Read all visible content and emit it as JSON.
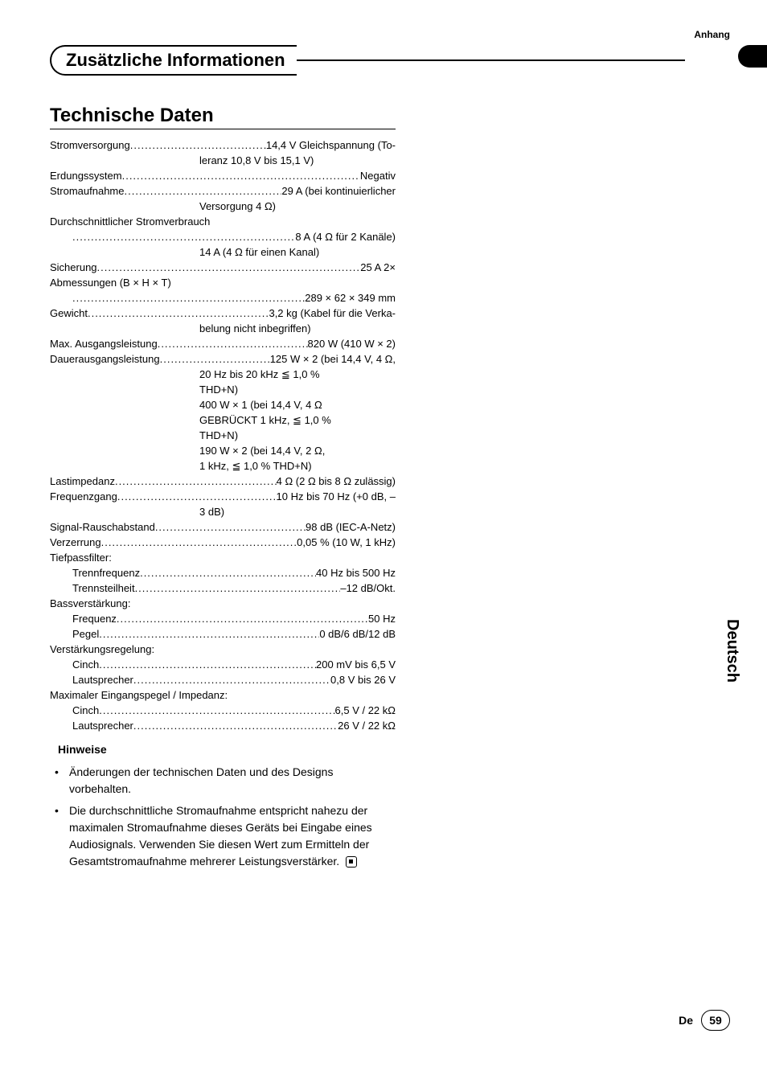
{
  "header": {
    "top_label": "Anhang",
    "pill_title": "Zusätzliche Informationen"
  },
  "side": {
    "language": "Deutsch"
  },
  "section_title": "Technische Daten",
  "specs": [
    {
      "t": "spec",
      "label": "Stromversorgung",
      "value": "14,4 V Gleichspannung (To-"
    },
    {
      "t": "cont",
      "value": "leranz 10,8 V bis 15,1 V)"
    },
    {
      "t": "spec",
      "label": "Erdungssystem",
      "value": "Negativ"
    },
    {
      "t": "spec",
      "label": "Stromaufnahme",
      "value": "29 A (bei kontinuierlicher"
    },
    {
      "t": "cont",
      "value": "Versorgung 4 Ω)"
    },
    {
      "t": "plain",
      "value": "Durchschnittlicher Stromverbrauch"
    },
    {
      "t": "spec",
      "indent": true,
      "label": "",
      "value": "8 A (4 Ω für 2 Kanäle)"
    },
    {
      "t": "cont",
      "value": "14 A (4 Ω für einen Kanal)"
    },
    {
      "t": "spec",
      "label": "Sicherung",
      "value": "25 A 2×"
    },
    {
      "t": "plain",
      "value": "Abmessungen (B × H × T)"
    },
    {
      "t": "spec",
      "indent": true,
      "label": "",
      "value": "289 × 62 × 349 mm"
    },
    {
      "t": "spec",
      "label": "Gewicht",
      "value": "3,2 kg (Kabel für die Verka-"
    },
    {
      "t": "cont",
      "value": "belung nicht inbegriffen)"
    },
    {
      "t": "spec",
      "label": "Max. Ausgangsleistung",
      "value": "820 W (410 W × 2)"
    },
    {
      "t": "spec",
      "label": "Dauerausgangsleistung",
      "value": "125 W × 2 (bei 14,4 V, 4 Ω,"
    },
    {
      "t": "cont",
      "value": "20 Hz bis 20 kHz ≦ 1,0 %"
    },
    {
      "t": "cont",
      "value": "THD+N)"
    },
    {
      "t": "cont",
      "value": "400 W × 1 (bei 14,4 V, 4 Ω"
    },
    {
      "t": "cont",
      "value": "GEBRÜCKT 1 kHz, ≦ 1,0 %"
    },
    {
      "t": "cont",
      "value": "THD+N)"
    },
    {
      "t": "cont",
      "value": "190 W × 2 (bei 14,4 V, 2 Ω,"
    },
    {
      "t": "cont",
      "value": "1 kHz, ≦ 1,0 % THD+N)"
    },
    {
      "t": "spec",
      "label": "Lastimpedanz",
      "value": "4 Ω (2 Ω bis 8 Ω zulässig)"
    },
    {
      "t": "spec",
      "label": "Frequenzgang",
      "value": "10 Hz bis 70 Hz (+0 dB, –"
    },
    {
      "t": "cont",
      "value": "3 dB)"
    },
    {
      "t": "spec",
      "label": "Signal-Rauschabstand",
      "value": "98 dB (IEC-A-Netz)"
    },
    {
      "t": "spec",
      "label": "Verzerrung",
      "value": "0,05 % (10 W, 1 kHz)"
    },
    {
      "t": "plain",
      "value": "Tiefpassfilter:"
    },
    {
      "t": "spec",
      "indent": true,
      "label": "Trennfrequenz",
      "value": "40 Hz bis 500 Hz"
    },
    {
      "t": "spec",
      "indent": true,
      "label": "Trennsteilheit",
      "value": "–12 dB/Okt."
    },
    {
      "t": "plain",
      "value": "Bassverstärkung:"
    },
    {
      "t": "spec",
      "indent": true,
      "label": "Frequenz",
      "value": "50 Hz"
    },
    {
      "t": "spec",
      "indent": true,
      "label": "Pegel",
      "value": "0 dB/6 dB/12 dB"
    },
    {
      "t": "plain",
      "value": "Verstärkungsregelung:"
    },
    {
      "t": "spec",
      "indent": true,
      "label": "Cinch",
      "value": "200 mV bis 6,5 V"
    },
    {
      "t": "spec",
      "indent": true,
      "label": "Lautsprecher",
      "value": "0,8 V bis 26 V"
    },
    {
      "t": "plain",
      "value": "Maximaler Eingangspegel / Impedanz:"
    },
    {
      "t": "spec",
      "indent": true,
      "label": "Cinch",
      "value": "6,5 V / 22 kΩ"
    },
    {
      "t": "spec",
      "indent": true,
      "label": "Lautsprecher",
      "value": "26 V / 22 kΩ"
    }
  ],
  "notes": {
    "title": "Hinweise",
    "items": [
      "Änderungen der technischen Daten und des Designs vorbehalten.",
      "Die durchschnittliche Stromaufnahme entspricht nahezu der maximalen Stromaufnahme dieses Geräts bei Eingabe eines Audiosignals. Verwenden Sie diesen Wert zum Ermitteln der Gesamtstromaufnahme mehrerer Leistungsverstärker."
    ]
  },
  "footer": {
    "lang_code": "De",
    "page": "59"
  },
  "style": {
    "text_color": "#000000",
    "bg_color": "#ffffff",
    "body_fontsize": 13,
    "title_fontsize": 24,
    "pill_fontsize": 22,
    "dot_char": "."
  }
}
